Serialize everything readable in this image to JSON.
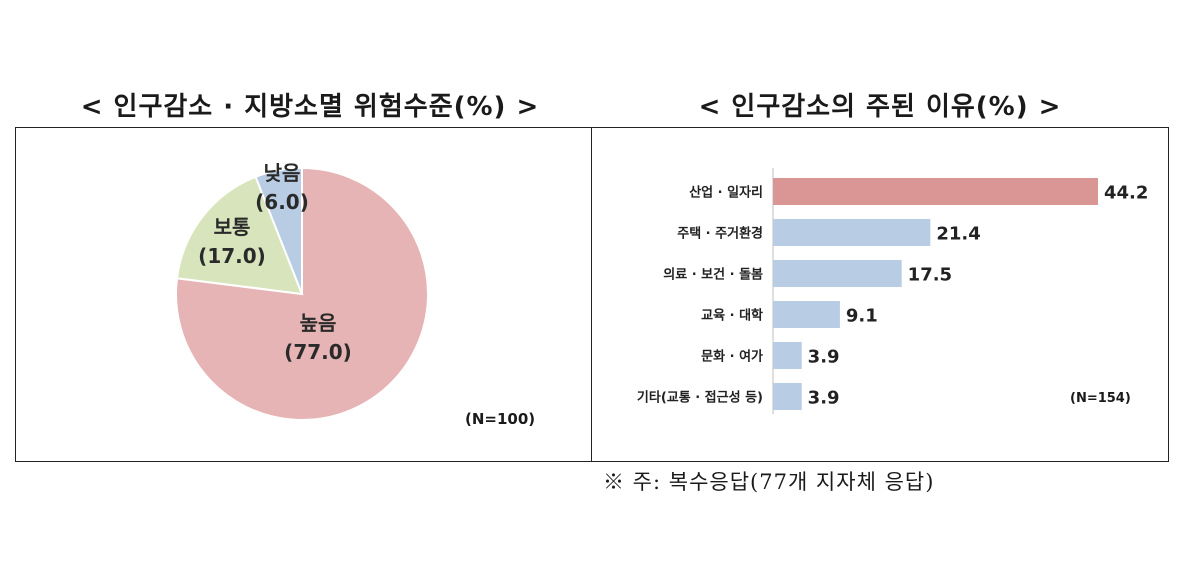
{
  "titles": {
    "left": "< 인구감소 · 지방소멸 위험수준(%) >",
    "right": "< 인구감소의 주된 이유(%) >"
  },
  "pie_n": "(N=100)",
  "bar_n": "(N=154)",
  "footnote": "※ 주: 복수응답(77개 지자체 응답)",
  "chart_data": [
    {
      "type": "pie",
      "title": "< 인구감소 · 지방소멸 위험수준(%) >",
      "slices": [
        {
          "name": "높음",
          "value": 77.0,
          "label": "(77.0)",
          "color": "#e6b4b4"
        },
        {
          "name": "보통",
          "value": 17.0,
          "label": "(17.0)",
          "color": "#d8e4bc"
        },
        {
          "name": "낮음",
          "value": 6.0,
          "label": "(6.0)",
          "color": "#b8cce4"
        }
      ]
    },
    {
      "type": "bar",
      "orientation": "horizontal",
      "title": "< 인구감소의 주된 이유(%) >",
      "categories": [
        "산업 · 일자리",
        "주택 · 주거환경",
        "의료 · 보건 · 돌봄",
        "교육 · 대학",
        "문화 · 여가",
        "기타(교통 · 접근성 등)"
      ],
      "values": [
        44.2,
        21.4,
        17.5,
        9.1,
        3.9,
        3.9
      ],
      "highlight_color": "#d99695",
      "bar_color": "#b8cce4",
      "xlim": [
        0,
        44.2
      ]
    }
  ]
}
